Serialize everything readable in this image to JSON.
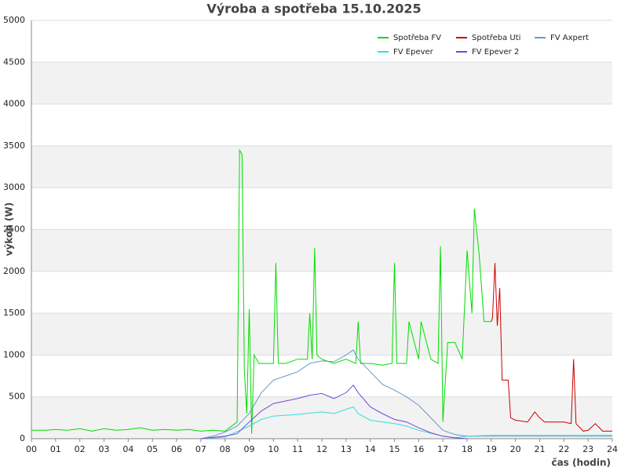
{
  "chart_data": {
    "type": "line",
    "title": "Výroba a spotřeba 15.10.2025",
    "xlabel": "čas (hodin)",
    "ylabel": "výkon (W)",
    "xlim": [
      0,
      24
    ],
    "ylim": [
      0,
      5000
    ],
    "grid": true,
    "legend": "upper right",
    "yticks": [
      0,
      500,
      1000,
      1500,
      2000,
      2500,
      3000,
      3500,
      4000,
      4500,
      5000
    ],
    "xticks": [
      {
        "value": 0,
        "label": "00"
      },
      {
        "value": 1,
        "label": "01"
      },
      {
        "value": 2,
        "label": "02"
      },
      {
        "value": 3,
        "label": "03"
      },
      {
        "value": 4,
        "label": "04"
      },
      {
        "value": 5,
        "label": "05"
      },
      {
        "value": 6,
        "label": "06"
      },
      {
        "value": 7,
        "label": "07"
      },
      {
        "value": 8,
        "label": "08"
      },
      {
        "value": 9,
        "label": "09"
      },
      {
        "value": 10,
        "label": "10"
      },
      {
        "value": 11,
        "label": "11"
      },
      {
        "value": 12,
        "label": "12"
      },
      {
        "value": 13,
        "label": "13"
      },
      {
        "value": 14,
        "label": "14"
      },
      {
        "value": 15,
        "label": "15"
      },
      {
        "value": 16,
        "label": "16"
      },
      {
        "value": 17,
        "label": "17"
      },
      {
        "value": 18,
        "label": "18"
      },
      {
        "value": 19,
        "label": "19"
      },
      {
        "value": 20,
        "label": "20"
      },
      {
        "value": 21,
        "label": "21"
      },
      {
        "value": 22,
        "label": "22"
      },
      {
        "value": 23,
        "label": "23"
      },
      {
        "value": 24,
        "label": "24"
      }
    ],
    "series": [
      {
        "name": "Spotřeba FV",
        "color": "#00dd00",
        "x": [
          0,
          0.2,
          0.6,
          1.0,
          1.5,
          2.0,
          2.5,
          3.0,
          3.5,
          4.0,
          4.5,
          5.0,
          5.5,
          6.0,
          6.5,
          7.0,
          7.5,
          8.0,
          8.5,
          8.6,
          8.7,
          8.8,
          8.9,
          9.0,
          9.1,
          9.2,
          9.4,
          9.6,
          10.0,
          10.1,
          10.2,
          10.5,
          11.0,
          11.4,
          11.5,
          11.6,
          11.7,
          11.8,
          12.0,
          12.5,
          13.0,
          13.4,
          13.5,
          13.6,
          14.0,
          14.5,
          14.9,
          15.0,
          15.1,
          15.5,
          15.6,
          16.0,
          16.1,
          16.5,
          16.8,
          16.9,
          17.0,
          17.2,
          17.5,
          17.8,
          18.0,
          18.2,
          18.3,
          18.5,
          18.7,
          19.0
        ],
        "values": [
          100,
          100,
          100,
          110,
          100,
          120,
          90,
          120,
          100,
          110,
          130,
          100,
          110,
          100,
          110,
          90,
          100,
          90,
          200,
          3450,
          3400,
          800,
          300,
          1550,
          60,
          1000,
          900,
          900,
          900,
          2100,
          900,
          900,
          950,
          950,
          1500,
          950,
          2280,
          1000,
          950,
          900,
          950,
          900,
          1400,
          900,
          900,
          880,
          900,
          2100,
          900,
          900,
          1400,
          950,
          1400,
          950,
          900,
          2300,
          200,
          1150,
          1150,
          950,
          2250,
          1500,
          2750,
          2200,
          1400,
          1400
        ]
      },
      {
        "name": "Spotřeba Uti",
        "color": "#cc0000",
        "x": [
          19.0,
          19.05,
          19.15,
          19.25,
          19.35,
          19.45,
          19.5,
          19.7,
          19.8,
          20.0,
          20.5,
          20.8,
          21.0,
          21.2,
          21.6,
          22.0,
          22.3,
          22.4,
          22.5,
          22.8,
          23.0,
          23.3,
          23.6,
          24.0
        ],
        "values": [
          1400,
          1450,
          2100,
          1350,
          1800,
          700,
          700,
          700,
          250,
          220,
          200,
          320,
          250,
          200,
          200,
          200,
          180,
          950,
          180,
          90,
          100,
          180,
          90,
          90
        ]
      },
      {
        "name": "FV Axpert",
        "color": "#6699cc",
        "x": [
          7,
          7.5,
          8,
          8.5,
          9,
          9.5,
          10,
          10.5,
          11,
          11.5,
          12,
          12.5,
          13,
          13.3,
          13.5,
          14,
          14.5,
          15,
          15.5,
          16,
          16.5,
          17,
          17.5,
          18,
          19,
          24
        ],
        "values": [
          0,
          30,
          80,
          150,
          300,
          550,
          700,
          750,
          800,
          900,
          930,
          920,
          1000,
          1060,
          950,
          800,
          650,
          580,
          500,
          400,
          250,
          100,
          50,
          30,
          30,
          30
        ]
      },
      {
        "name": "FV Epever",
        "color": "#33dddd",
        "x": [
          7,
          8,
          9,
          9.5,
          10,
          11,
          12,
          12.5,
          13,
          13.3,
          13.5,
          14,
          15,
          15.5,
          16,
          17,
          17.5,
          18,
          19,
          24
        ],
        "values": [
          0,
          20,
          150,
          230,
          270,
          290,
          320,
          300,
          350,
          380,
          300,
          220,
          180,
          150,
          100,
          30,
          10,
          30,
          40,
          40
        ]
      },
      {
        "name": "FV Epever 2",
        "color": "#7744dd",
        "x": [
          7,
          8,
          8.5,
          9,
          9.5,
          10,
          10.5,
          11,
          11.5,
          12,
          12.5,
          13,
          13.3,
          13.5,
          14,
          14.5,
          15,
          15.5,
          16,
          16.5,
          17,
          17.5,
          18
        ],
        "values": [
          0,
          30,
          60,
          200,
          330,
          420,
          450,
          480,
          520,
          540,
          480,
          550,
          640,
          550,
          380,
          300,
          230,
          200,
          130,
          70,
          30,
          10,
          0
        ]
      }
    ]
  }
}
